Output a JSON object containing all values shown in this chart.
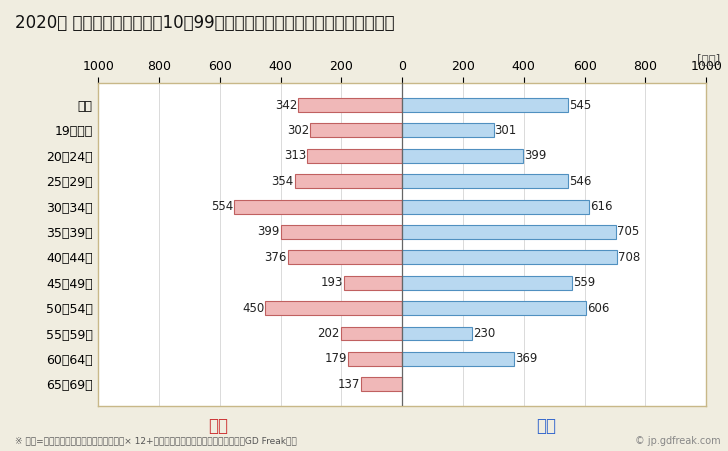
{
  "title": "2020年 民間企業（従業者数10〜99人）フルタイム労働者の男女別平均年収",
  "unit_label": "[万円]",
  "footnote": "※ 年収=「きまって支給する現金給与額」× 12+「年間賞与その他特別給与額」としてGD Freak推計",
  "watermark": "© jp.gdfreak.com",
  "categories": [
    "全体",
    "19歳以下",
    "20〜24歳",
    "25〜29歳",
    "30〜34歳",
    "35〜39歳",
    "40〜44歳",
    "45〜49歳",
    "50〜54歳",
    "55〜59歳",
    "60〜64歳",
    "65〜69歳"
  ],
  "female_values": [
    342,
    302,
    313,
    354,
    554,
    399,
    376,
    193,
    450,
    202,
    179,
    137
  ],
  "male_values": [
    545,
    301,
    399,
    546,
    616,
    705,
    708,
    559,
    606,
    230,
    369,
    0
  ],
  "female_color": "#f0b8b8",
  "female_border_color": "#c06060",
  "male_color": "#b8d8f0",
  "male_border_color": "#5090c0",
  "female_label": "女性",
  "male_label": "男性",
  "female_label_color": "#cc3333",
  "male_label_color": "#3366cc",
  "xlim": [
    -1000,
    1000
  ],
  "xticks": [
    -1000,
    -800,
    -600,
    -400,
    -200,
    0,
    200,
    400,
    600,
    800,
    1000
  ],
  "xtick_labels": [
    "1000",
    "800",
    "600",
    "400",
    "200",
    "0",
    "200",
    "400",
    "600",
    "800",
    "1000"
  ],
  "bg_color": "#f0ede0",
  "plot_bg_color": "#ffffff",
  "grid_color": "#cccccc",
  "title_fontsize": 12,
  "axis_fontsize": 9,
  "value_fontsize": 8.5,
  "legend_fontsize": 12,
  "footnote_fontsize": 6.5,
  "bar_height": 0.55,
  "border_color": "#c8b888"
}
